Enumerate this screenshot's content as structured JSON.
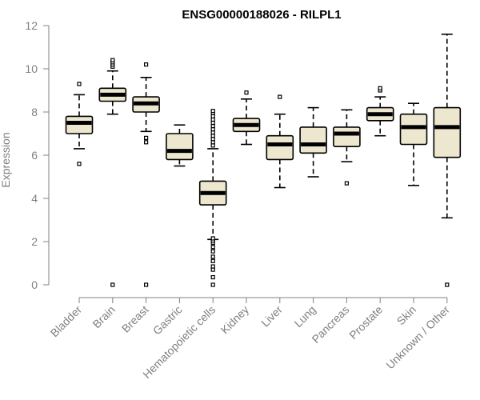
{
  "chart_data": {
    "type": "box",
    "title": "ENSG00000188026 - RILPL1",
    "xlabel": "",
    "ylabel": "Expression",
    "ylim": [
      0,
      12
    ],
    "yticks": [
      0,
      2,
      4,
      6,
      8,
      10,
      12
    ],
    "grid": false,
    "legend": "none",
    "box_fill": "#ede7cf",
    "categories": [
      "Bladder",
      "Brain",
      "Breast",
      "Gastric",
      "Hematopoietic cells",
      "Kidney",
      "Liver",
      "Lung",
      "Pancreas",
      "Prostate",
      "Skin",
      "Unknown / Other"
    ],
    "boxes": [
      {
        "whislo": 6.3,
        "q1": 7.0,
        "med": 7.5,
        "q3": 7.8,
        "whishi": 8.8,
        "fliers": [
          5.6,
          9.3
        ]
      },
      {
        "whislo": 7.9,
        "q1": 8.5,
        "med": 8.8,
        "q3": 9.1,
        "whishi": 9.9,
        "fliers": [
          0.0,
          10.1,
          10.2,
          10.3,
          10.4
        ]
      },
      {
        "whislo": 7.1,
        "q1": 8.0,
        "med": 8.4,
        "q3": 8.7,
        "whishi": 9.6,
        "fliers": [
          0.0,
          6.6,
          6.8,
          10.2
        ]
      },
      {
        "whislo": 5.5,
        "q1": 5.8,
        "med": 6.2,
        "q3": 7.0,
        "whishi": 7.4,
        "fliers": []
      },
      {
        "whislo": 2.1,
        "q1": 3.7,
        "med": 4.25,
        "q3": 4.8,
        "whishi": 6.3,
        "fliers": [
          0.0,
          0.35,
          0.7,
          0.85,
          1.1,
          1.3,
          1.55,
          1.75,
          1.95,
          2.05,
          2.15,
          6.45,
          6.6,
          6.75,
          6.9,
          7.05,
          7.2,
          7.35,
          7.5,
          7.65,
          7.8,
          7.95,
          8.05
        ]
      },
      {
        "whislo": 6.5,
        "q1": 7.1,
        "med": 7.4,
        "q3": 7.7,
        "whishi": 8.6,
        "fliers": [
          8.9
        ]
      },
      {
        "whislo": 4.5,
        "q1": 5.8,
        "med": 6.5,
        "q3": 6.9,
        "whishi": 7.9,
        "fliers": [
          8.7
        ]
      },
      {
        "whislo": 5.0,
        "q1": 6.1,
        "med": 6.5,
        "q3": 7.3,
        "whishi": 8.2,
        "fliers": []
      },
      {
        "whislo": 5.7,
        "q1": 6.4,
        "med": 7.0,
        "q3": 7.3,
        "whishi": 8.1,
        "fliers": [
          4.7
        ]
      },
      {
        "whislo": 6.9,
        "q1": 7.6,
        "med": 7.9,
        "q3": 8.2,
        "whishi": 8.7,
        "fliers": [
          9.0,
          9.1
        ]
      },
      {
        "whislo": 4.6,
        "q1": 6.5,
        "med": 7.3,
        "q3": 7.9,
        "whishi": 8.4,
        "fliers": []
      },
      {
        "whislo": 3.1,
        "q1": 5.9,
        "med": 7.3,
        "q3": 8.2,
        "whishi": 11.6,
        "fliers": [
          0.0
        ]
      }
    ]
  }
}
